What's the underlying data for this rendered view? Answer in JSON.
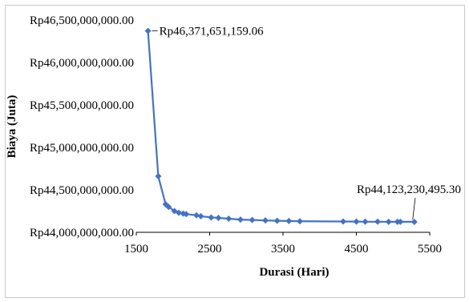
{
  "chart_data": {
    "type": "line",
    "xlabel": "Durasi (Hari)",
    "ylabel": "Biaya (Juta)",
    "xlim": [
      1500,
      5500
    ],
    "ylim": [
      44000000000,
      46500000000
    ],
    "x_ticks": [
      1500,
      2500,
      3500,
      4500,
      5500
    ],
    "x_tick_labels": [
      "1500",
      "2500",
      "3500",
      "4500",
      "5500"
    ],
    "y_ticks": [
      44000000000,
      44500000000,
      45000000000,
      45500000000,
      46000000000,
      46500000000
    ],
    "y_tick_labels": [
      "Rp44,000,000,000.00",
      "Rp44,500,000,000.00",
      "Rp45,000,000,000.00",
      "Rp45,500,000,000.00",
      "Rp46,000,000,000.00",
      "Rp46,500,000,000.00"
    ],
    "grid": false,
    "legend": "none",
    "series_color": "#4472C4",
    "marker": "diamond",
    "series": [
      {
        "x": [
          1660,
          1800,
          1900,
          1940,
          2020,
          2080,
          2140,
          2180,
          2320,
          2380,
          2520,
          2620,
          2760,
          2920,
          3080,
          3260,
          3420,
          3580,
          3730,
          4320,
          4500,
          4620,
          4790,
          4940,
          5060,
          5100,
          5290
        ],
        "y": [
          46371651159.06,
          44660000000,
          44330000000,
          44300000000,
          44250000000,
          44230000000,
          44220000000,
          44215000000,
          44200000000,
          44190000000,
          44175000000,
          44170000000,
          44160000000,
          44150000000,
          44145000000,
          44140000000,
          44136000000,
          44133000000,
          44130000000,
          44127000000,
          44126000000,
          44125000000,
          44124500000,
          44124000000,
          44123800000,
          44123500000,
          44123230495.3
        ]
      }
    ],
    "annotations": [
      {
        "text": "Rp46,371,651,159.06",
        "x": 1660,
        "y": 46371651159.06
      },
      {
        "text": "Rp44,123,230,495.30",
        "x": 5290,
        "y": 44123230495.3
      }
    ]
  }
}
